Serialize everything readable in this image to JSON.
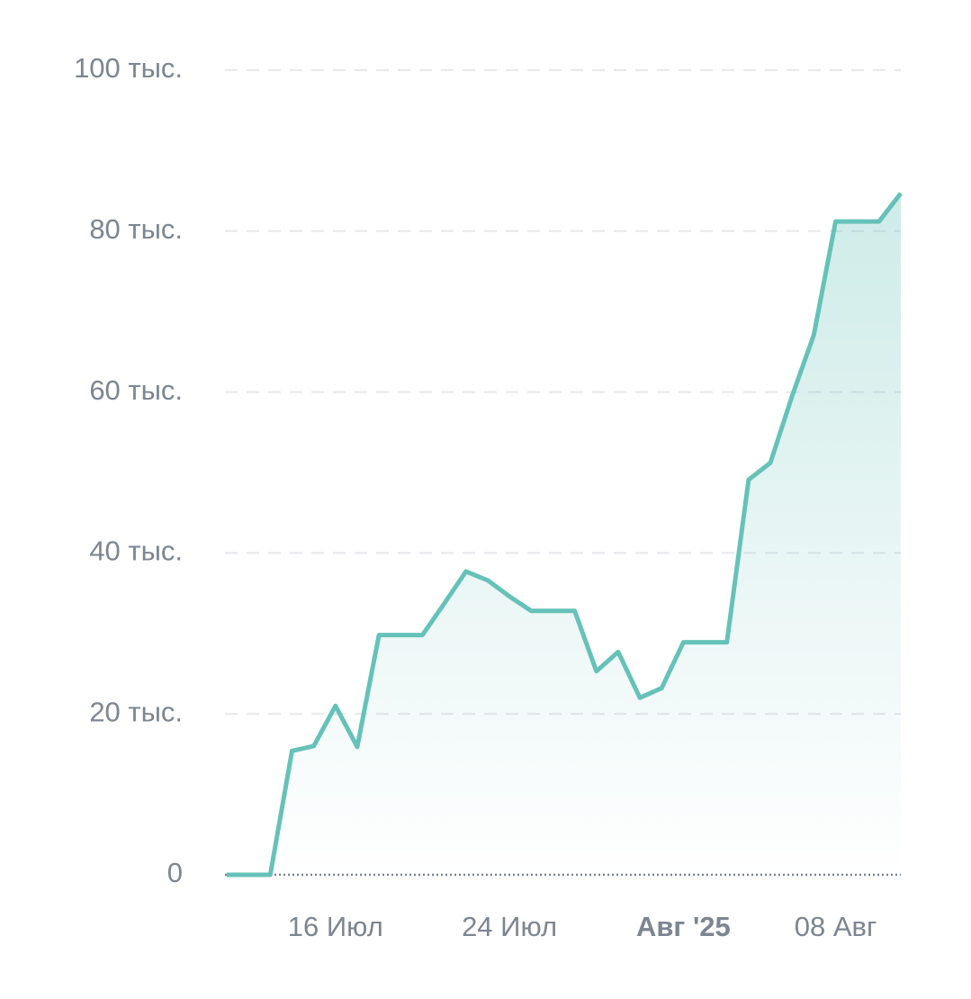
{
  "chart_data": {
    "type": "area",
    "x": [
      "2025-07-11",
      "2025-07-12",
      "2025-07-13",
      "2025-07-14",
      "2025-07-15",
      "2025-07-16",
      "2025-07-17",
      "2025-07-18",
      "2025-07-19",
      "2025-07-20",
      "2025-07-21",
      "2025-07-22",
      "2025-07-23",
      "2025-07-24",
      "2025-07-25",
      "2025-07-26",
      "2025-07-27",
      "2025-07-28",
      "2025-07-29",
      "2025-07-30",
      "2025-07-31",
      "2025-08-01",
      "2025-08-02",
      "2025-08-03",
      "2025-08-04",
      "2025-08-05",
      "2025-08-06",
      "2025-08-07",
      "2025-08-08",
      "2025-08-09",
      "2025-08-10",
      "2025-08-11"
    ],
    "values": [
      0,
      0,
      0,
      15400,
      16000,
      21000,
      15900,
      29800,
      29800,
      29800,
      33700,
      37700,
      36600,
      34600,
      32800,
      32800,
      32800,
      25300,
      27700,
      22000,
      23200,
      28900,
      28900,
      28900,
      49100,
      51200,
      59500,
      67100,
      81200,
      81200,
      81200,
      84700
    ],
    "color": "#66c2b8",
    "xlim": [
      "2025-07-11",
      "2025-08-11"
    ],
    "xticks": [
      {
        "value": "2025-07-16",
        "label": "16 Июл"
      },
      {
        "value": "2025-07-24",
        "label": "24 Июл"
      },
      {
        "value": "2025-08-01",
        "label": "Авг '25",
        "bold": true
      },
      {
        "value": "2025-08-08",
        "label": "08 Авг"
      }
    ],
    "ylim": [
      0,
      100000
    ],
    "yticks": [
      0,
      {
        "value": 20000,
        "label": "20 тыс."
      },
      {
        "value": 40000,
        "label": "40 тыс."
      },
      {
        "value": 60000,
        "label": "60 тыс."
      },
      {
        "value": 80000,
        "label": "80 тыс."
      },
      {
        "value": 100000,
        "label": "100 тыс."
      }
    ],
    "grid": true
  }
}
